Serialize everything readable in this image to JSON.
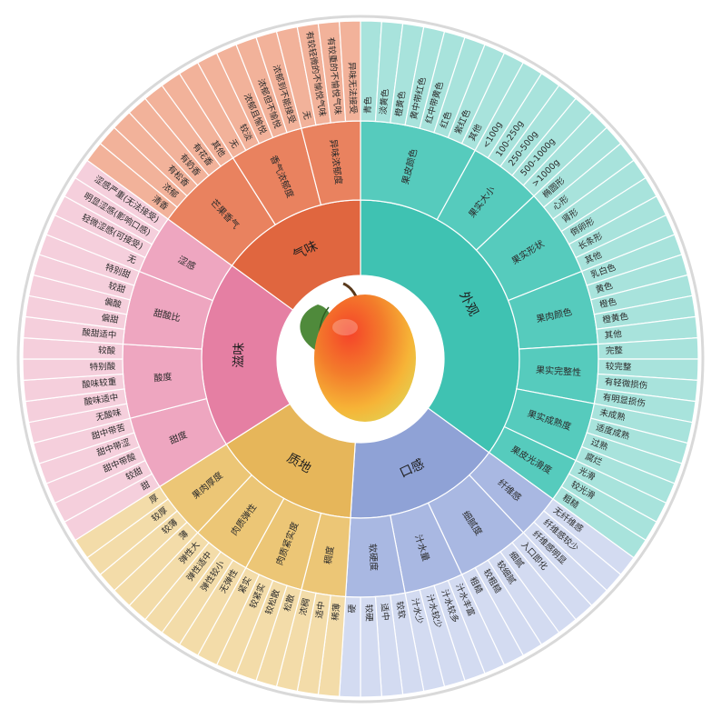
{
  "diagram": {
    "center_image": "mango",
    "categories": [
      {
        "name": "外观",
        "colors": {
          "inner": "#3fc2b2",
          "mid": "#56cbbd",
          "outer": "#a8e3dc"
        },
        "subcategories": [
          {
            "name": "果皮颜色",
            "items": [
              "青色",
              "淡黄色",
              "橙黄色",
              "黄中带红色",
              "红中带黄色",
              "红色",
              "紫红色",
              "其他"
            ]
          },
          {
            "name": "果实大小",
            "items": [
              "<100g",
              "100-250g",
              "250-500g",
              "500-1000g",
              ">1000g"
            ]
          },
          {
            "name": "果实形状",
            "items": [
              "椭圆形",
              "心形",
              "肾形",
              "倒卵形",
              "长条形",
              "其他"
            ]
          },
          {
            "name": "果肉颜色",
            "items": [
              "乳白色",
              "黄色",
              "橙色",
              "橙黄色",
              "其他"
            ]
          },
          {
            "name": "果实完整性",
            "items": [
              "完整",
              "较完整",
              "有轻微损伤",
              "有明显损伤"
            ]
          },
          {
            "name": "果实成熟度",
            "items": [
              "未成熟",
              "适度成熟",
              "过熟",
              "腐烂"
            ]
          },
          {
            "name": "果皮光滑度",
            "items": [
              "光滑",
              "较光滑",
              "粗糙"
            ]
          }
        ]
      },
      {
        "name": "口感",
        "colors": {
          "inner": "#8fa2d6",
          "mid": "#a9b8e2",
          "outer": "#d3dbf1"
        },
        "subcategories": [
          {
            "name": "纤维感",
            "items": [
              "无纤维感",
              "纤维感较少",
              "纤维感明显"
            ]
          },
          {
            "name": "细腻度",
            "items": [
              "入口即化",
              "细腻",
              "较细腻",
              "较粗糙",
              "粗糙"
            ]
          },
          {
            "name": "汁水量",
            "items": [
              "汁水丰富",
              "汁水较多",
              "汁水较少",
              "汁水少"
            ]
          },
          {
            "name": "软硬度",
            "items": [
              "较软",
              "适中",
              "较硬",
              "硬"
            ]
          }
        ]
      },
      {
        "name": "质地",
        "colors": {
          "inner": "#e6b65a",
          "mid": "#ecc676",
          "outer": "#f3dca9"
        },
        "subcategories": [
          {
            "name": "稠度",
            "items": [
              "稀薄",
              "适中",
              "浓稠"
            ]
          },
          {
            "name": "肉质紧实度",
            "items": [
              "松散",
              "较松散",
              "较紧实",
              "紧实"
            ]
          },
          {
            "name": "肉质弹性",
            "items": [
              "无弹性",
              "弹性较小",
              "弹性适中",
              "弹性大"
            ]
          },
          {
            "name": "果肉厚度",
            "items": [
              "薄",
              "较薄",
              "较厚",
              "厚"
            ]
          }
        ]
      },
      {
        "name": "滋味",
        "colors": {
          "inner": "#e57fa3",
          "mid": "#eea6c0",
          "outer": "#f5cfdc"
        },
        "subcategories": [
          {
            "name": "甜度",
            "items": [
              "甜",
              "较甜",
              "甜中带酸",
              "甜中带涩",
              "甜中带苦"
            ]
          },
          {
            "name": "酸度",
            "items": [
              "无酸味",
              "酸味适中",
              "酸味较重",
              "特别酸",
              "较酸"
            ]
          },
          {
            "name": "甜酸比",
            "items": [
              "酸甜适中",
              "偏甜",
              "偏酸",
              "较甜",
              "特别甜"
            ]
          },
          {
            "name": "涩感",
            "items": [
              "无",
              "轻微涩感(可接受)",
              "明显涩感(影响口感)",
              "涩感严重(无法接受)"
            ]
          }
        ]
      },
      {
        "name": "气味",
        "colors": {
          "inner": "#e0663f",
          "mid": "#e9825f",
          "outer": "#f2b29a"
        },
        "subcategories": [
          {
            "name": "芒果香气",
            "items": [
              "清香",
              "浓郁",
              "有松香",
              "有奶香",
              "有花香",
              "其他"
            ]
          },
          {
            "name": "香气浓郁度",
            "items": [
              "无",
              "较淡",
              "浓郁且愉悦",
              "浓郁但不愉悦",
              "浓郁到不能接受"
            ]
          },
          {
            "name": "异味浓郁度",
            "items": [
              "无",
              "有较轻微的不愉悦气味",
              "有较重的不愉悦气味",
              "异味无法接受"
            ]
          }
        ]
      }
    ]
  }
}
